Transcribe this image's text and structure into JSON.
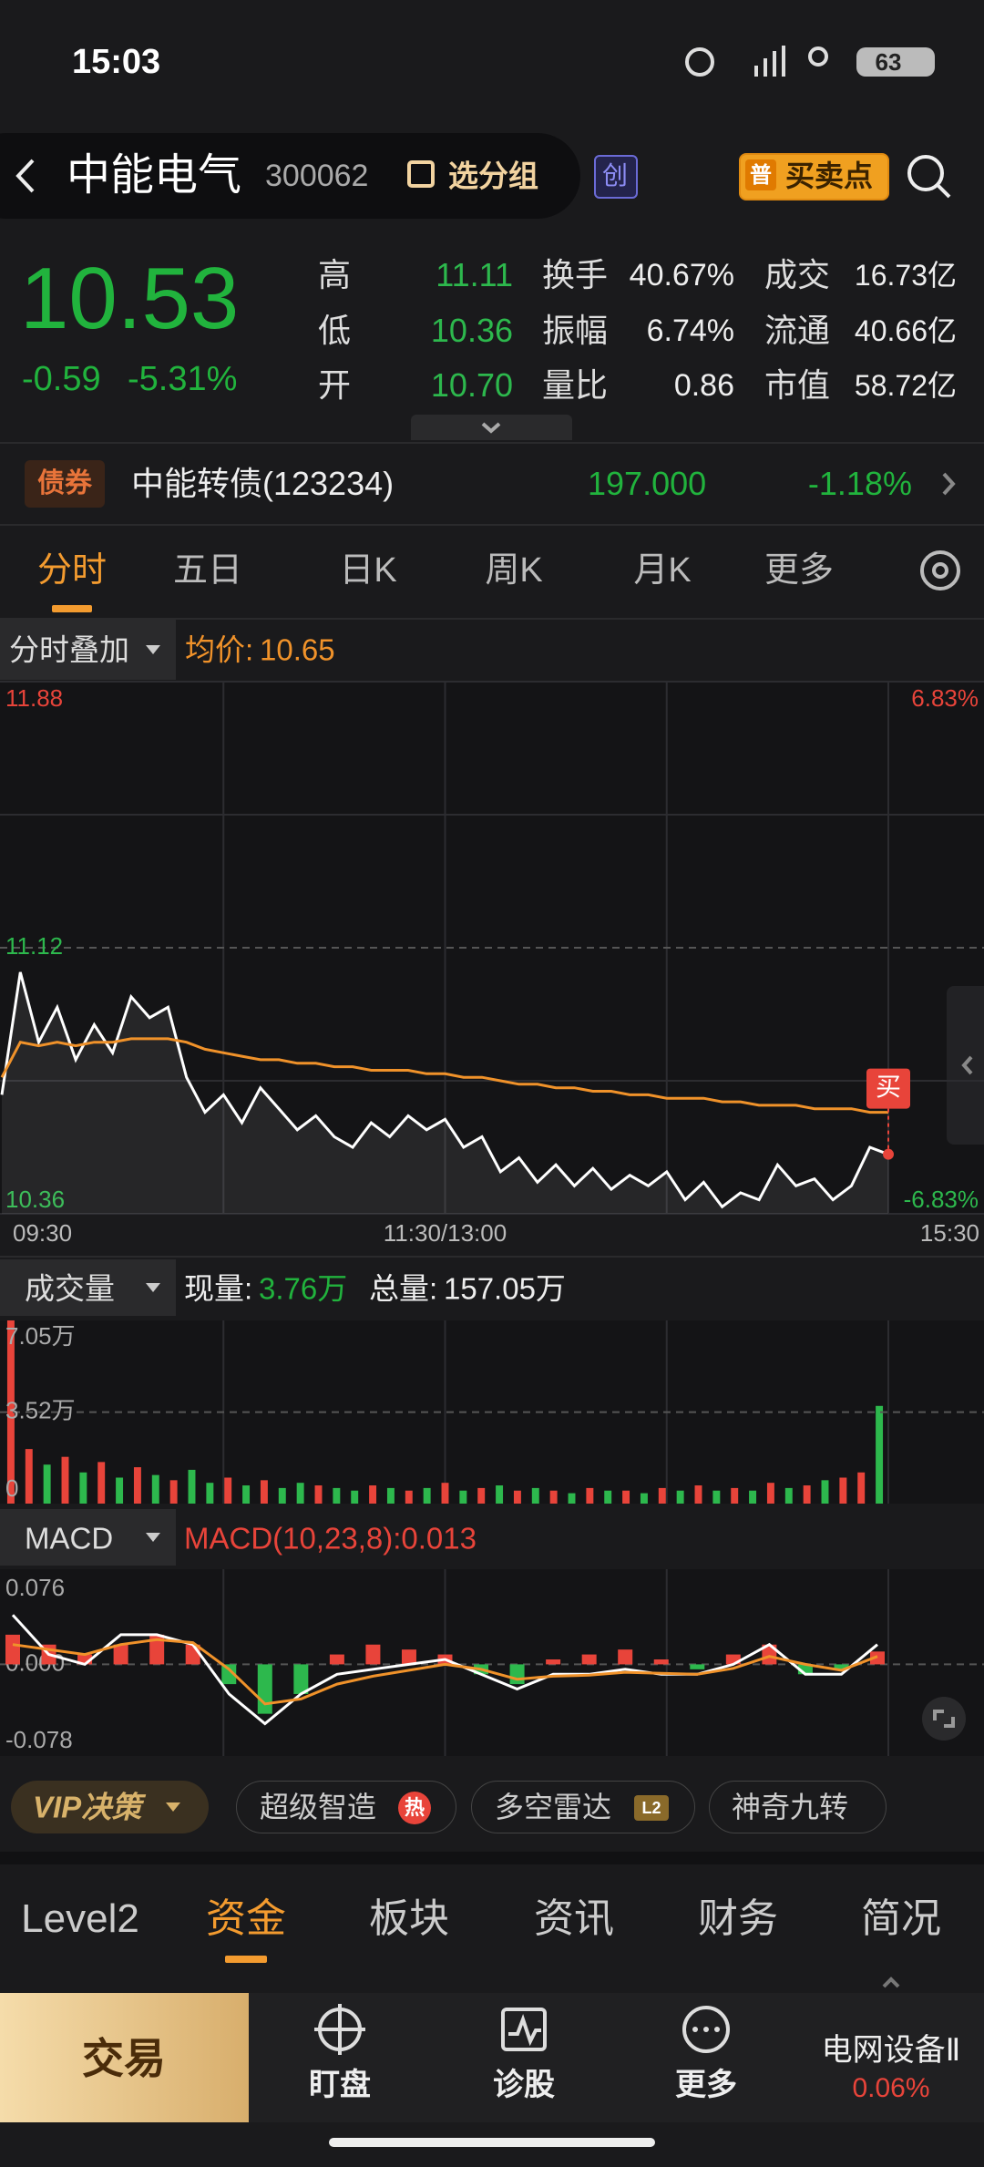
{
  "status_bar": {
    "time": "15:03",
    "battery": "63"
  },
  "header": {
    "name": "中能电气",
    "code": "300062",
    "group_button": "选分组",
    "board_badge": "创",
    "buy_sell_badge": "普",
    "buy_sell_button": "买卖点"
  },
  "quote": {
    "price": "10.53",
    "change": "-0.59",
    "change_pct": "-5.31%",
    "stats": [
      [
        {
          "label": "高",
          "value": "11.11",
          "color": "#2db84d"
        },
        {
          "label": "换手",
          "value": "40.67%"
        },
        {
          "label": "成交",
          "value": "16.73亿"
        }
      ],
      [
        {
          "label": "低",
          "value": "10.36",
          "color": "#2db84d"
        },
        {
          "label": "振幅",
          "value": "6.74%"
        },
        {
          "label": "流通",
          "value": "40.66亿"
        }
      ],
      [
        {
          "label": "开",
          "value": "10.70",
          "color": "#2db84d"
        },
        {
          "label": "量比",
          "value": "0.86"
        },
        {
          "label": "市值",
          "value": "58.72亿"
        }
      ]
    ]
  },
  "bond": {
    "badge": "债券",
    "name": "中能转债(123234)",
    "price": "197.000",
    "change_pct": "-1.18%"
  },
  "period_tabs": {
    "items": [
      "分时",
      "五日",
      "日K",
      "周K",
      "月K",
      "更多"
    ],
    "active": 0
  },
  "overlay": {
    "menu": "分时叠加",
    "avg_label": "均价:",
    "avg_value": "10.65"
  },
  "volume_header": {
    "menu": "成交量",
    "current_label": "现量:",
    "current_value": "3.76万",
    "total_label": "总量:",
    "total_value": "157.05万"
  },
  "macd_header": {
    "menu": "MACD",
    "indicator": "MACD(10,23,8):0.013"
  },
  "chart_data": [
    {
      "type": "line",
      "categories": [
        "09:30",
        null,
        null,
        null,
        null,
        null,
        null,
        null,
        null,
        null,
        null,
        null,
        null,
        null,
        null,
        null,
        null,
        null,
        null,
        null,
        null,
        null,
        null,
        null,
        "11:30/13:00",
        null,
        null,
        null,
        null,
        null,
        null,
        null,
        null,
        null,
        null,
        null,
        null,
        null,
        null,
        null,
        null,
        null,
        null,
        null,
        null,
        null,
        null,
        null,
        "15:30"
      ],
      "series": [
        {
          "color": "#ffffff",
          "values": [
            10.7,
            11.05,
            10.85,
            10.95,
            10.8,
            10.9,
            10.82,
            10.98,
            10.92,
            10.95,
            10.75,
            10.65,
            10.7,
            10.62,
            10.72,
            10.66,
            10.6,
            10.64,
            10.58,
            10.55,
            10.62,
            10.58,
            10.64,
            10.6,
            10.63,
            10.55,
            10.58,
            10.48,
            10.52,
            10.45,
            10.5,
            10.44,
            10.49,
            10.43,
            10.47,
            10.44,
            10.48,
            10.4,
            10.45,
            10.38,
            10.42,
            10.4,
            10.5,
            10.44,
            10.46,
            10.4,
            10.44,
            10.55,
            10.53
          ]
        },
        {
          "color": "#f0922a",
          "values": [
            10.75,
            10.85,
            10.84,
            10.85,
            10.84,
            10.85,
            10.85,
            10.86,
            10.86,
            10.86,
            10.85,
            10.83,
            10.82,
            10.81,
            10.8,
            10.8,
            10.79,
            10.79,
            10.78,
            10.78,
            10.77,
            10.77,
            10.77,
            10.76,
            10.76,
            10.75,
            10.75,
            10.74,
            10.73,
            10.73,
            10.72,
            10.72,
            10.71,
            10.71,
            10.7,
            10.7,
            10.69,
            10.69,
            10.69,
            10.68,
            10.68,
            10.67,
            10.67,
            10.67,
            10.66,
            10.66,
            10.66,
            10.65,
            10.65
          ]
        }
      ],
      "ylim": [
        10.36,
        11.88
      ],
      "yticks": [
        11.88,
        11.12,
        10.36
      ],
      "y2lim": [
        -6.83,
        6.83
      ],
      "y2ticks": [
        {
          "value": 6.83,
          "label": "6.83%"
        },
        {
          "value": -6.83,
          "label": "-6.83%"
        }
      ],
      "annotations": [
        "买"
      ],
      "colors": {
        "up": "#e8443a",
        "down": "#2db84d"
      }
    },
    {
      "type": "bar",
      "values": [
        7.05,
        2.1,
        1.5,
        1.8,
        1.2,
        1.6,
        1.0,
        1.4,
        1.1,
        0.9,
        1.3,
        0.8,
        1.0,
        0.7,
        0.9,
        0.6,
        0.8,
        0.7,
        0.6,
        0.5,
        0.7,
        0.6,
        0.5,
        0.6,
        0.8,
        0.5,
        0.6,
        0.7,
        0.5,
        0.6,
        0.5,
        0.4,
        0.6,
        0.5,
        0.5,
        0.4,
        0.6,
        0.5,
        0.7,
        0.5,
        0.6,
        0.5,
        0.8,
        0.6,
        0.7,
        0.9,
        1.0,
        1.2,
        3.76
      ],
      "ylim": [
        0,
        7.05
      ],
      "yticks": [
        {
          "value": 7.05,
          "label": "7.05万"
        },
        {
          "value": 3.52,
          "label": "3.52万"
        },
        0
      ],
      "colors": {
        "up": "#e8443a",
        "down": "#2db84d"
      }
    },
    {
      "type": "macd",
      "histogram": [
        0.03,
        0.02,
        0.01,
        0.02,
        0.03,
        0.02,
        -0.02,
        -0.05,
        -0.03,
        0.01,
        0.02,
        0.015,
        0.01,
        -0.01,
        -0.02,
        0.005,
        0.01,
        0.015,
        0.005,
        -0.005,
        0.01,
        0.02,
        -0.01,
        -0.005,
        0.013
      ],
      "series": [
        {
          "color": "#ffffff",
          "values": [
            0.05,
            0.01,
            0.0,
            0.03,
            0.03,
            0.02,
            -0.03,
            -0.06,
            -0.03,
            -0.01,
            -0.005,
            0.0,
            0.005,
            -0.01,
            -0.025,
            -0.01,
            -0.01,
            -0.005,
            -0.01,
            -0.01,
            0.0,
            0.02,
            -0.01,
            -0.01,
            0.02
          ]
        },
        {
          "color": "#f0922a",
          "values": [
            0.02,
            0.015,
            0.01,
            0.02,
            0.025,
            0.022,
            -0.005,
            -0.04,
            -0.035,
            -0.02,
            -0.012,
            -0.006,
            0.0,
            -0.005,
            -0.015,
            -0.012,
            -0.011,
            -0.008,
            -0.009,
            -0.01,
            -0.004,
            0.008,
            0.0,
            -0.006,
            0.008
          ]
        }
      ],
      "ylim": [
        -0.078,
        0.076
      ],
      "yticks": [
        0.076,
        {
          "value": 0,
          "label": "0.000"
        },
        -0.078
      ],
      "colors": {
        "up": "#e8443a",
        "down": "#2db84d"
      }
    }
  ],
  "pills": {
    "vip": "VIP决策",
    "smart": "超级智造",
    "hot": "热",
    "radar": "多空雷达",
    "l2": "L2",
    "nine": "神奇九转"
  },
  "bottom_tabs": {
    "items": [
      "Level2",
      "资金",
      "板块",
      "资讯",
      "财务",
      "简况"
    ],
    "active": 1
  },
  "bottom_nav": {
    "trade": "交易",
    "watch": "盯盘",
    "diagnose": "诊股",
    "more": "更多",
    "sector": "电网设备Ⅱ",
    "sector_change": "0.06%"
  }
}
